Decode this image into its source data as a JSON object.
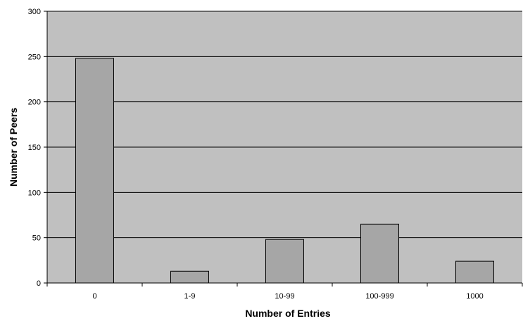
{
  "chart_data": {
    "type": "bar",
    "title": "",
    "xlabel": "Number of Entries",
    "ylabel": "Number of Peers",
    "categories": [
      "0",
      "1-9",
      "10-99",
      "100-999",
      "1000"
    ],
    "values": [
      248,
      13,
      48,
      65,
      24
    ],
    "ylim": [
      0,
      300
    ],
    "yticks": [
      0,
      50,
      100,
      150,
      200,
      250,
      300
    ],
    "grid": true,
    "legend": "none",
    "colors": {
      "plot_background": "#c0c0c0",
      "bar_fill": "#a6a6a6",
      "bar_stroke": "#000000",
      "gridline": "#000000"
    }
  }
}
